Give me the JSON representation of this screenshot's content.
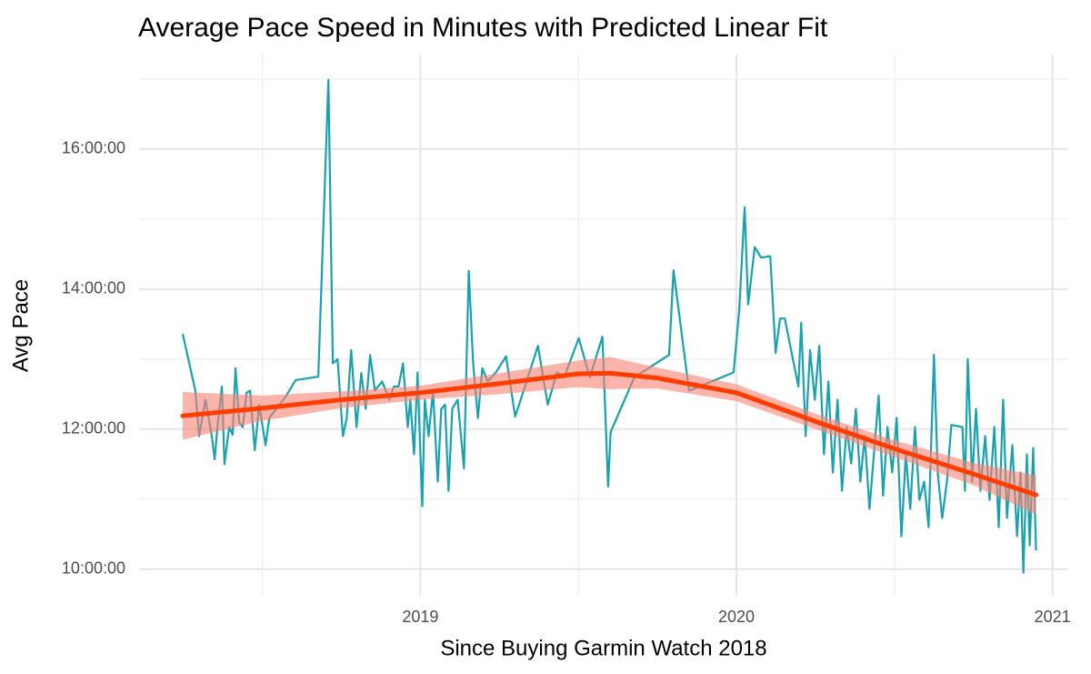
{
  "chart_data": {
    "type": "line",
    "title": "Average Pace Speed in Minutes with Predicted Linear Fit",
    "x_label": "Since Buying Garmin Watch 2018",
    "y_label": "Avg Pace",
    "color": "#17a2b0",
    "x": [
      2018.248,
      2018.288,
      2018.3,
      2018.32,
      2018.34,
      2018.349,
      2018.36,
      2018.372,
      2018.38,
      2018.395,
      2018.406,
      2018.415,
      2018.427,
      2018.438,
      2018.45,
      2018.461,
      2018.476,
      2018.49,
      2018.51,
      2018.522,
      2018.576,
      2018.605,
      2018.677,
      2018.709,
      2018.723,
      2018.738,
      2018.755,
      2018.767,
      2018.781,
      2018.798,
      2018.813,
      2018.827,
      2018.841,
      2018.856,
      2018.879,
      2018.902,
      2018.916,
      2018.931,
      2018.945,
      2018.96,
      2018.968,
      2018.98,
      2018.991,
      2019.006,
      2019.014,
      2019.026,
      2019.04,
      2019.055,
      2019.066,
      2019.078,
      2019.089,
      2019.101,
      2019.118,
      2019.138,
      2019.153,
      2019.167,
      2019.182,
      2019.196,
      2019.213,
      2019.239,
      2019.271,
      2019.3,
      2019.331,
      2019.372,
      2019.403,
      2019.432,
      2019.455,
      2019.501,
      2019.536,
      2019.576,
      2019.594,
      2019.602,
      2019.677,
      2019.787,
      2019.801,
      2019.85,
      2019.991,
      2020.009,
      2020.026,
      2020.037,
      2020.058,
      2020.078,
      2020.107,
      2020.124,
      2020.138,
      2020.153,
      2020.196,
      2020.205,
      2020.219,
      2020.233,
      2020.248,
      2020.262,
      2020.277,
      2020.291,
      2020.305,
      2020.32,
      2020.334,
      2020.349,
      2020.363,
      2020.378,
      2020.392,
      2020.406,
      2020.421,
      2020.435,
      2020.45,
      2020.464,
      2020.478,
      2020.493,
      2020.507,
      2020.522,
      2020.536,
      2020.55,
      2020.565,
      2020.579,
      2020.594,
      2020.608,
      2020.625,
      2020.637,
      2020.651,
      2020.666,
      2020.68,
      2020.715,
      2020.723,
      2020.732,
      2020.746,
      2020.758,
      2020.772,
      2020.787,
      2020.801,
      2020.816,
      2020.83,
      2020.844,
      2020.856,
      2020.873,
      2020.888,
      2020.899,
      2020.908,
      2020.919,
      2020.928,
      2020.939,
      2020.948
    ],
    "values": [
      13.36,
      12.55,
      11.9,
      12.42,
      11.9,
      11.57,
      12.13,
      12.61,
      11.5,
      12.03,
      11.92,
      12.87,
      12.09,
      12.03,
      12.52,
      12.55,
      11.7,
      12.35,
      11.77,
      12.16,
      12.48,
      12.7,
      12.75,
      16.99,
      12.94,
      13.0,
      11.9,
      12.16,
      13.13,
      12.03,
      12.8,
      12.29,
      13.06,
      12.55,
      12.68,
      12.42,
      12.61,
      12.61,
      12.94,
      12.03,
      12.42,
      11.64,
      12.81,
      10.9,
      12.42,
      11.9,
      12.55,
      11.25,
      12.29,
      12.35,
      11.12,
      12.29,
      12.42,
      11.44,
      14.26,
      12.94,
      12.16,
      12.87,
      12.68,
      12.81,
      13.04,
      12.18,
      12.61,
      13.19,
      12.35,
      12.81,
      12.74,
      13.3,
      12.74,
      13.32,
      11.18,
      11.96,
      12.74,
      13.06,
      14.27,
      12.55,
      12.81,
      13.71,
      15.17,
      13.78,
      14.6,
      14.45,
      14.47,
      13.09,
      13.58,
      13.58,
      12.61,
      13.52,
      11.9,
      13.13,
      12.42,
      13.19,
      11.64,
      12.68,
      11.38,
      12.42,
      11.12,
      12.03,
      11.51,
      12.29,
      11.25,
      11.9,
      10.86,
      11.64,
      12.48,
      11.05,
      12.03,
      11.38,
      12.16,
      10.47,
      11.64,
      10.86,
      12.03,
      10.99,
      11.25,
      10.6,
      13.06,
      11.38,
      10.73,
      11.25,
      12.06,
      12.03,
      11.12,
      13.0,
      11.25,
      12.29,
      11.12,
      11.9,
      10.99,
      12.03,
      10.6,
      12.42,
      10.73,
      11.77,
      10.47,
      11.38,
      9.95,
      11.64,
      10.34,
      11.73,
      10.27
    ],
    "fit": {
      "color": "#ff3d00",
      "band_color": "#fa8072",
      "x": [
        2018.248,
        2018.5,
        2018.75,
        2019.0,
        2019.25,
        2019.5,
        2019.6,
        2019.75,
        2020.0,
        2020.25,
        2020.5,
        2020.75,
        2020.948
      ],
      "values": [
        12.19,
        12.3,
        12.42,
        12.52,
        12.65,
        12.79,
        12.8,
        12.73,
        12.52,
        12.11,
        11.72,
        11.36,
        11.06
      ],
      "lower": [
        11.85,
        12.12,
        12.3,
        12.42,
        12.5,
        12.6,
        12.57,
        12.58,
        12.4,
        12.0,
        11.6,
        11.2,
        10.78
      ],
      "upper": [
        12.53,
        12.48,
        12.54,
        12.62,
        12.8,
        12.98,
        13.03,
        12.88,
        12.64,
        12.22,
        11.84,
        11.52,
        11.34
      ]
    },
    "xlim": [
      2018.11,
      2021.05
    ],
    "xticks": [
      2019,
      2020,
      2021
    ],
    "x_minor_ticks": [
      2018.5,
      2019.5,
      2020.5
    ],
    "ylim": [
      9.62,
      17.35
    ],
    "yticks": [
      {
        "value": 10,
        "label": "10:00:00"
      },
      {
        "value": 12,
        "label": "12:00:00"
      },
      {
        "value": 14,
        "label": "14:00:00"
      },
      {
        "value": 16,
        "label": "16:00:00"
      }
    ],
    "y_minor_ticks": [
      11,
      13,
      15,
      17
    ],
    "grid": true
  }
}
